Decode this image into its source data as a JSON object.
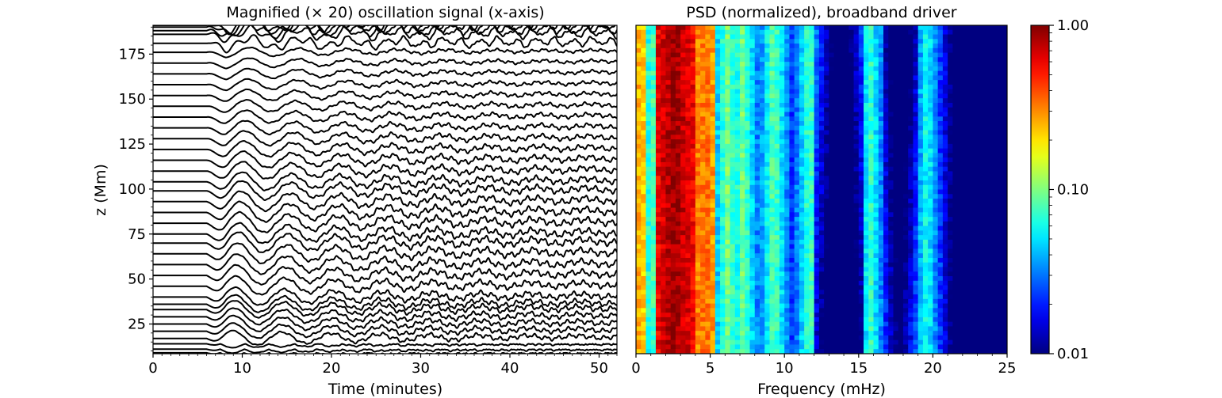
{
  "chart_data": [
    {
      "type": "line",
      "title": "Magnified (× 20) oscillation signal (x-axis)",
      "xlabel": "Time (minutes)",
      "ylabel": "z (Mm)",
      "xlim": [
        0,
        52
      ],
      "ylim": [
        8.5,
        191
      ],
      "xticks": [
        "0",
        "10",
        "20",
        "30",
        "40",
        "50"
      ],
      "yticks": [
        "25",
        "50",
        "75",
        "100",
        "125",
        "150",
        "175"
      ],
      "grid": false,
      "series_baselines_z": [
        9,
        11,
        14,
        17,
        21,
        25,
        29,
        33,
        36,
        40,
        46,
        52,
        58,
        64,
        70,
        75,
        81,
        87,
        93,
        99,
        104,
        110,
        116,
        122,
        128,
        134,
        140,
        146,
        152,
        158,
        164,
        170,
        176,
        181,
        186,
        188,
        190,
        191
      ],
      "line_color": "#000000",
      "wave_period_min": 5.5,
      "wave_onset_min": 6,
      "wave_peak_z": 75
    },
    {
      "type": "heatmap",
      "title": "PSD (normalized), broadband driver",
      "xlabel": "Frequency (mHz)",
      "ylabel": "",
      "xlim": [
        0,
        25
      ],
      "ylim": [
        8.5,
        191
      ],
      "xticks": [
        "0",
        "5",
        "10",
        "15",
        "20",
        "25"
      ],
      "colormap": "jet",
      "color_scale": "log",
      "colorbar": {
        "min": 0.01,
        "max": 1.0,
        "ticks": [
          "0.01",
          "0.10",
          "1.00"
        ]
      },
      "frequency_bins": 75,
      "height_bins": 72,
      "peak_band_mHz": [
        1.5,
        4.0
      ],
      "secondary_bands_mHz": [
        4.7,
        6.2,
        7.2,
        9.3,
        11.7,
        15.8,
        19.6
      ]
    }
  ]
}
